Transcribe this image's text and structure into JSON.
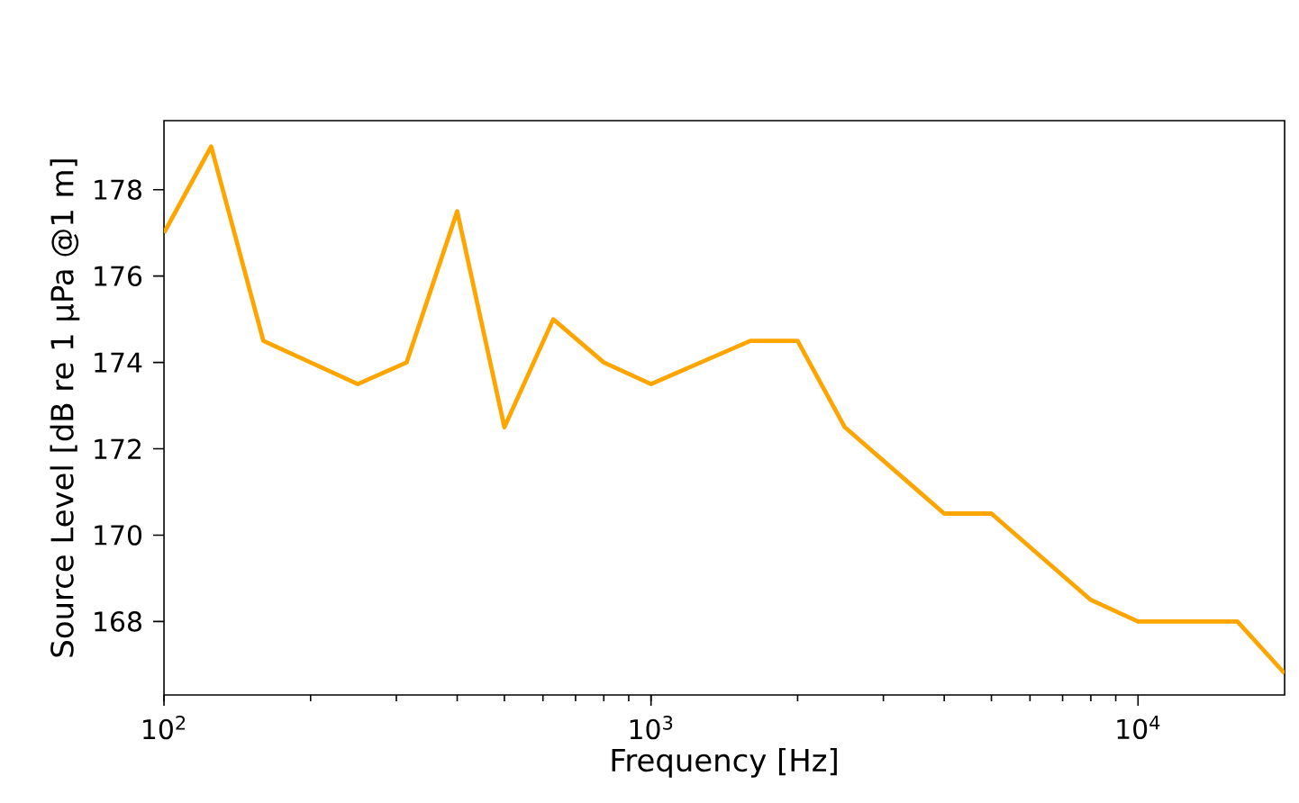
{
  "chart_data": {
    "type": "line",
    "xlabel": "Frequency [Hz]",
    "ylabel": "Source Level [dB re 1 µPa @1 m]",
    "log": "x",
    "grid": false,
    "line_style": "solid",
    "marker": "none",
    "x": [
      100,
      125,
      160,
      250,
      315,
      400,
      500,
      630,
      800,
      1000,
      1600,
      2000,
      2500,
      4000,
      5000,
      8000,
      10000,
      16000,
      20000
    ],
    "series": [
      {
        "color": "#ffa500",
        "values": [
          177.0,
          179.0,
          174.5,
          173.5,
          174.0,
          177.5,
          172.5,
          175.0,
          174.0,
          173.5,
          174.5,
          174.5,
          172.5,
          170.5,
          170.5,
          168.5,
          168.0,
          168.0,
          166.8
        ]
      }
    ],
    "xlim": [
      100,
      20000
    ],
    "ylim": [
      166.3,
      179.6
    ],
    "xticks": [
      {
        "value": 100,
        "label": "10$^{2}$"
      },
      {
        "value": 1000,
        "label": "10$^{3}$"
      },
      {
        "value": 10000,
        "label": "10$^{4}$"
      }
    ],
    "yticks": [
      168,
      170,
      172,
      174,
      176,
      178
    ]
  }
}
